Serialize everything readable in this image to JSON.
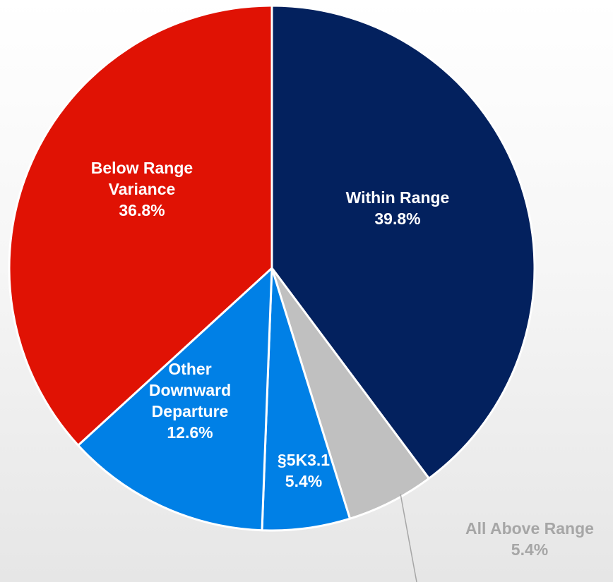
{
  "chart_data": {
    "type": "pie",
    "title": "",
    "start_angle_deg": 0,
    "direction": "clockwise",
    "slices": [
      {
        "name": "Within Range",
        "value": 39.8,
        "value_label": "39.8%",
        "color": "#03215e",
        "label_color": "#ffffff",
        "label_lines": [
          "Within Range",
          "39.8%"
        ]
      },
      {
        "name": "All Above Range",
        "value": 5.4,
        "value_label": "5.4%",
        "color": "#c0c0c0",
        "label_color": "#a6a6a6",
        "label_lines": [
          "All Above Range",
          "5.4%"
        ],
        "label_outside": true
      },
      {
        "name": "§5K3.1",
        "value": 5.4,
        "value_label": "5.4%",
        "color": "#0080e6",
        "label_color": "#ffffff",
        "label_lines": [
          "§5K3.1",
          "5.4%"
        ]
      },
      {
        "name": "Other Downward Departure",
        "value": 12.6,
        "value_label": "12.6%",
        "color": "#0080e6",
        "label_color": "#ffffff",
        "label_lines": [
          "Other",
          "Downward",
          "Departure",
          "12.6%"
        ]
      },
      {
        "name": "Below Range Variance",
        "value": 36.8,
        "value_label": "36.8%",
        "color": "#e01204",
        "label_color": "#ffffff",
        "label_lines": [
          "Below Range",
          "Variance",
          "36.8%"
        ]
      }
    ]
  }
}
